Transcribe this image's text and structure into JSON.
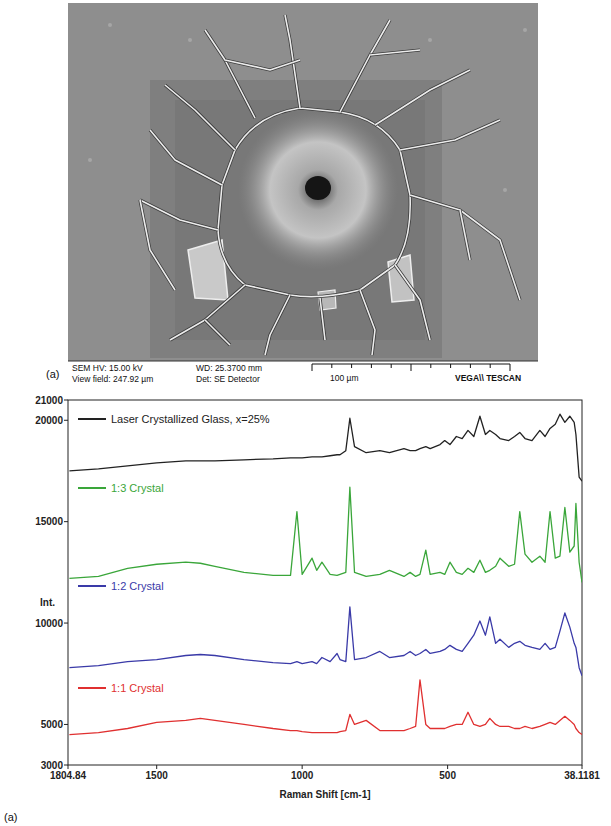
{
  "panel_labels": [
    "(a)",
    "(a)"
  ],
  "sem_image": {
    "info": [
      "SEM HV: 15.00 kV",
      "WD: 25.3700 mm",
      "View field: 247.92 µm",
      "Det: SE Detector"
    ],
    "scale_bar": "100 µm",
    "brand": "VEGA\\\\ TESCAN"
  },
  "chart_data": {
    "type": "line",
    "x_label": "Raman Shift [cm-1]",
    "y_label": "Int.",
    "xlim": [
      1804.84,
      38.1181
    ],
    "xticks": [
      1804.84,
      1500,
      1000,
      500,
      38.1181
    ],
    "ylim": [
      3000,
      21000
    ],
    "yticks": [
      3000,
      5000,
      10000,
      15000,
      20000,
      21000
    ],
    "x": [
      1800,
      1700,
      1600,
      1500,
      1400,
      1350,
      1300,
      1200,
      1100,
      1040,
      1018,
      1000,
      966,
      950,
      932,
      904,
      880,
      870,
      850,
      836,
      820,
      780,
      733,
      700,
      650,
      629,
      610,
      595,
      575,
      560,
      526,
      510,
      492,
      470,
      450,
      430,
      410,
      389,
      370,
      355,
      335,
      320,
      290,
      270,
      252,
      234,
      210,
      183,
      165,
      148,
      130,
      114,
      97,
      80,
      65,
      59,
      48,
      38
    ],
    "series": [
      {
        "name": "Laser Crystallized Glass, x=25%",
        "color": "#222222",
        "values": [
          17500,
          17600,
          17750,
          17900,
          18000,
          18000,
          18000,
          18050,
          18100,
          18150,
          18150,
          18150,
          18200,
          18200,
          18200,
          18250,
          18300,
          18300,
          18500,
          20100,
          18700,
          18400,
          18500,
          18400,
          18600,
          18500,
          18500,
          18600,
          18700,
          18600,
          18800,
          19000,
          18800,
          19200,
          19100,
          19500,
          19200,
          20200,
          19300,
          19500,
          19300,
          19100,
          19000,
          19200,
          19400,
          19100,
          19000,
          19500,
          19200,
          19600,
          19800,
          20300,
          19900,
          20200,
          19900,
          19300,
          17200,
          17000
        ]
      },
      {
        "name": "1:3 Crystal",
        "color": "#3aa63a",
        "values": [
          12200,
          12300,
          12700,
          12900,
          13000,
          12950,
          12800,
          12500,
          12350,
          12350,
          15500,
          12400,
          13200,
          12600,
          13000,
          12400,
          12350,
          12400,
          12500,
          16700,
          12500,
          12300,
          12400,
          12600,
          12300,
          12500,
          12300,
          12400,
          13600,
          12400,
          12500,
          12400,
          13000,
          12500,
          12400,
          12700,
          12500,
          13100,
          12500,
          12600,
          12800,
          13200,
          12800,
          12900,
          15500,
          13400,
          13000,
          13300,
          13000,
          15500,
          13200,
          13300,
          15700,
          13500,
          13800,
          15900,
          13000,
          12000
        ]
      },
      {
        "name": "1:2 Crystal",
        "color": "#3a3aa8",
        "values": [
          7800,
          7900,
          8100,
          8200,
          8400,
          8450,
          8400,
          8200,
          8050,
          8000,
          8100,
          8000,
          8100,
          8000,
          8300,
          8100,
          8500,
          8200,
          8100,
          10800,
          8200,
          8300,
          8600,
          8300,
          8400,
          8600,
          8400,
          8500,
          8700,
          8500,
          8600,
          8700,
          8900,
          8700,
          8600,
          9000,
          9400,
          10100,
          9400,
          10300,
          9000,
          9200,
          8800,
          9000,
          9100,
          8900,
          8800,
          8700,
          9000,
          8700,
          8800,
          9600,
          10500,
          9800,
          9000,
          8800,
          7800,
          7400
        ]
      },
      {
        "name": "1:1 Crystal",
        "color": "#e03030",
        "values": [
          4500,
          4600,
          4800,
          5100,
          5200,
          5300,
          5200,
          5000,
          4800,
          4700,
          4700,
          4650,
          4600,
          4600,
          4600,
          4600,
          4600,
          4650,
          4700,
          5500,
          5000,
          5200,
          4700,
          4700,
          4700,
          4800,
          4900,
          7200,
          5000,
          4800,
          4800,
          4800,
          4900,
          5000,
          5000,
          5600,
          5000,
          4900,
          5000,
          5300,
          5000,
          4900,
          4900,
          4800,
          4800,
          4900,
          4800,
          4900,
          5000,
          5100,
          5000,
          5200,
          5400,
          5200,
          5000,
          4800,
          4600,
          4500
        ]
      }
    ]
  }
}
